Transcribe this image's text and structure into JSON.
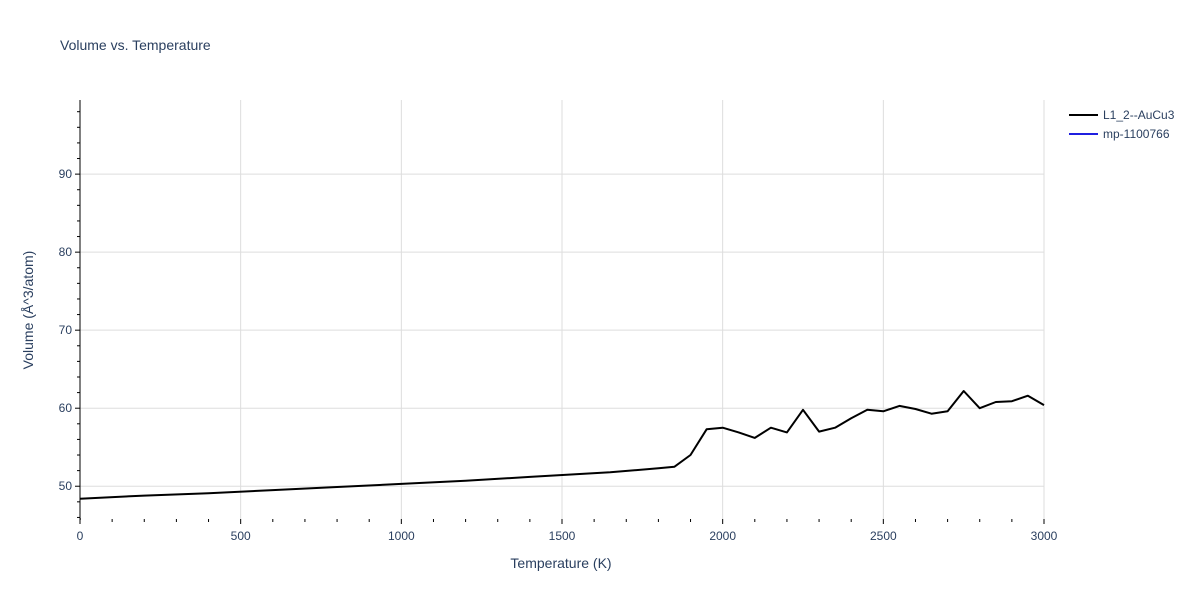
{
  "chart_data": {
    "type": "line",
    "title": "Volume vs. Temperature",
    "xlabel": "Temperature (K)",
    "ylabel": "Volume (Å^3/atom)",
    "xlim": [
      0,
      3000
    ],
    "ylim": [
      45.8,
      99.5
    ],
    "xticks": [
      0,
      500,
      1000,
      1500,
      2000,
      2500,
      3000
    ],
    "yticks": [
      50,
      60,
      70,
      80,
      90
    ],
    "grid": true,
    "legend_position": "top-right",
    "series": [
      {
        "name": "L1_2--AuCu3",
        "color": "#000000",
        "x": [
          0,
          200,
          400,
          600,
          800,
          1000,
          1200,
          1400,
          1650,
          1800,
          1850,
          1900,
          1950,
          2000,
          2050,
          2100,
          2150,
          2200,
          2250,
          2300,
          2350,
          2400,
          2450,
          2500,
          2550,
          2600,
          2650,
          2700,
          2750,
          2800,
          2850,
          2900,
          2950,
          3000
        ],
        "values": [
          48.4,
          48.8,
          49.1,
          49.5,
          49.9,
          50.3,
          50.7,
          51.2,
          51.8,
          52.3,
          52.5,
          54.0,
          57.3,
          57.5,
          56.9,
          56.2,
          57.5,
          56.9,
          59.8,
          57.0,
          57.5,
          58.7,
          59.8,
          59.6,
          60.3,
          59.9,
          59.3,
          59.6,
          62.2,
          60.0,
          60.8,
          60.9,
          61.6,
          60.4
        ]
      },
      {
        "name": "mp-1100766",
        "color": "#1f1fe0",
        "x": [],
        "values": []
      }
    ]
  }
}
